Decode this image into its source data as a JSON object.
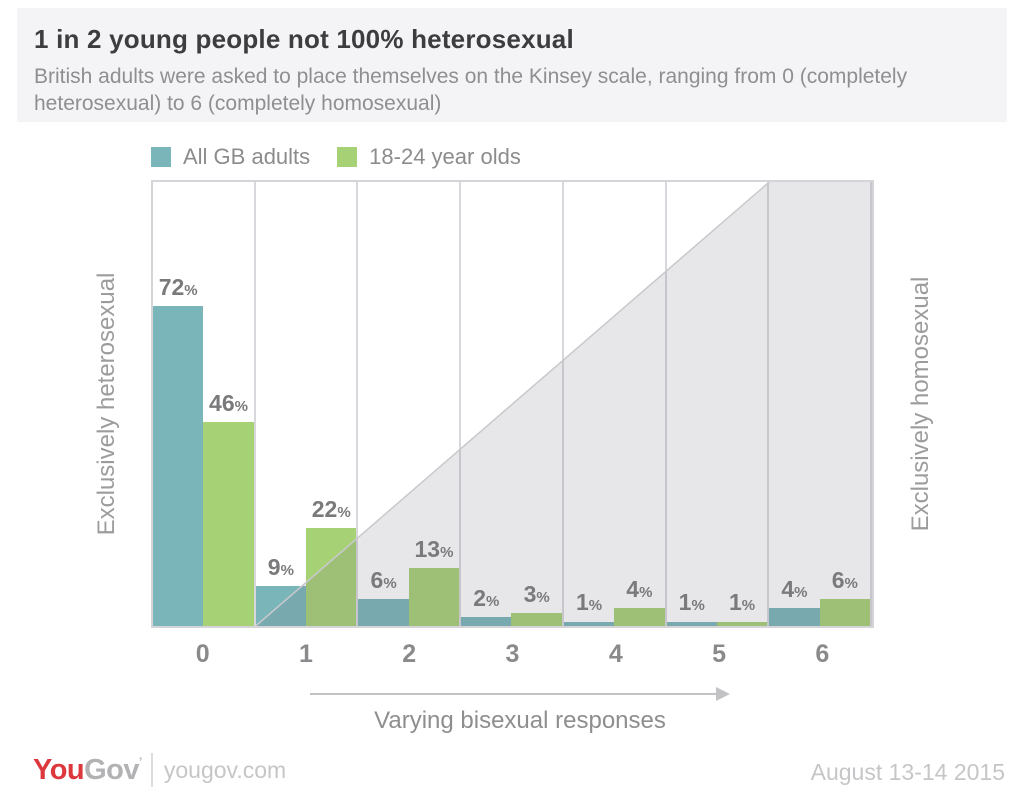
{
  "header": {
    "title": "1 in 2 young people not 100% heterosexual",
    "subtitle": "British adults were asked to place themselves on the Kinsey scale, ranging from 0 (completely heterosexual) to 6 (completely homosexual)"
  },
  "legend": [
    {
      "label": "All GB adults",
      "color": "#7ab5b9"
    },
    {
      "label": "18-24 year olds",
      "color": "#a7d175"
    }
  ],
  "chart_data": {
    "type": "bar",
    "title": "1 in 2 young people not 100% heterosexual",
    "categories": [
      "0",
      "1",
      "2",
      "3",
      "4",
      "5",
      "6"
    ],
    "series": [
      {
        "name": "All GB adults",
        "color": "#7ab5b9",
        "values": [
          72,
          9,
          6,
          2,
          1,
          1,
          4
        ]
      },
      {
        "name": "18-24 year olds",
        "color": "#a7d175",
        "values": [
          46,
          22,
          13,
          3,
          4,
          1,
          6
        ]
      }
    ],
    "value_suffix": "%",
    "ylim": [
      0,
      100
    ],
    "grid": "vertical-column-separators",
    "legend_position": "top-left",
    "xlabel": "",
    "ylabel_left": "Exclusively heterosexual",
    "ylabel_right": "Exclusively homosexual",
    "x_annotation": "Varying bisexual responses",
    "background_shape": "gray diagonal triangle rising from category 1 baseline to top of category 6"
  },
  "axis": {
    "left_label": "Exclusively heterosexual",
    "right_label": "Exclusively homosexual"
  },
  "annotation": {
    "arrow_label": "Varying bisexual responses"
  },
  "footer": {
    "logo_you": "You",
    "logo_gov": "Gov",
    "site": "yougov.com",
    "date": "August 13-14 2015"
  },
  "colors": {
    "series_all_gb": "#7ab5b9",
    "series_18_24": "#a7d175",
    "triangle_fill": "#e8e8ea",
    "gridline": "#d8d8dc",
    "header_bg": "#f4f4f6",
    "title_text": "#3d3d3f",
    "muted_text": "#8f8f91",
    "logo_red": "#dc383d",
    "footer_text": "#c6c6c8"
  }
}
